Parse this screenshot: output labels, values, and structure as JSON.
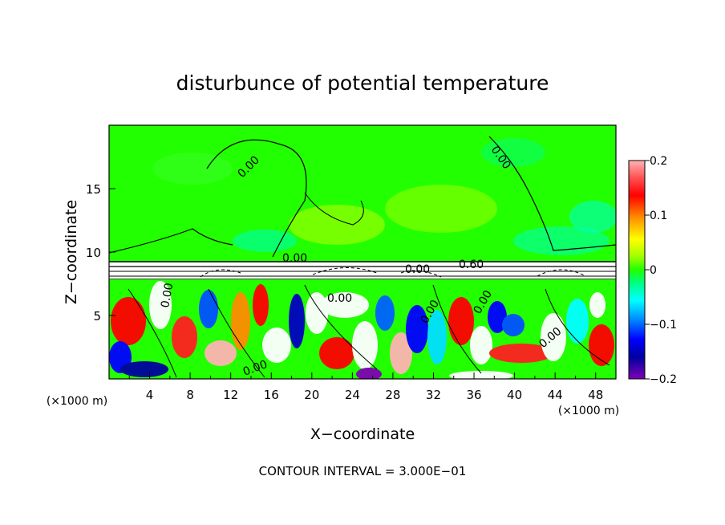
{
  "chart_data": {
    "type": "heatmap",
    "title": "disturbunce of potential temperature",
    "xlabel": "X−coordinate",
    "ylabel": "Z−coordinate",
    "x_unit_left": "(×1000 m)",
    "x_unit_right": "(×1000 m)",
    "footer": "CONTOUR INTERVAL = 3.000E−01",
    "xlim": [
      0,
      50
    ],
    "ylim": [
      0,
      20
    ],
    "x_ticks": [
      "4",
      "8",
      "12",
      "16",
      "20",
      "24",
      "28",
      "32",
      "36",
      "40",
      "44",
      "48"
    ],
    "y_ticks": [
      "5",
      "10",
      "15"
    ],
    "colorbar": {
      "range": [
        -0.2,
        0.2
      ],
      "tick_labels": [
        "0.2",
        "0.1",
        "0",
        "−0.1",
        "−0.2"
      ]
    },
    "contour_labels": [
      "0.00",
      "0.00",
      "0.00",
      "0.00",
      "0.00",
      "0.00",
      "0.60",
      "0.00",
      "0.00",
      "0.00",
      "0.00"
    ],
    "grid": false,
    "colors": {
      "background_field": "#22ff00",
      "cold_extreme": "#7e00b4",
      "warm_extreme": "#ffb4b4"
    }
  }
}
